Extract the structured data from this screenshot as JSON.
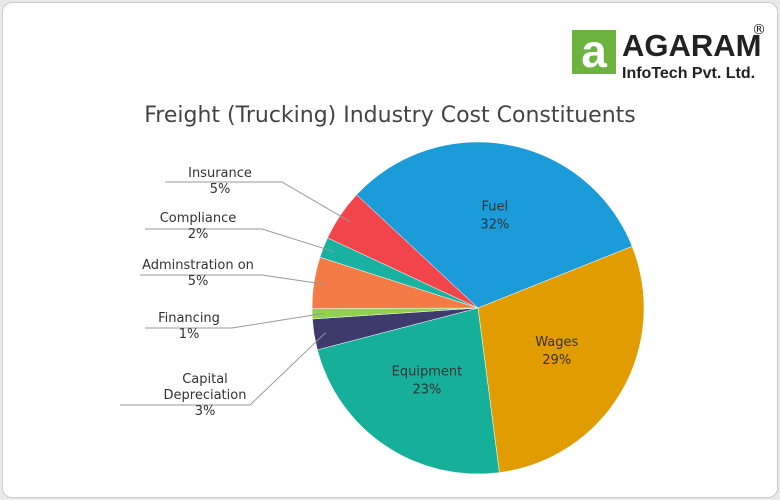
{
  "logo": {
    "icon": "a",
    "name": "AGARAM",
    "mark": "®",
    "tagline": "InfoTech Pvt. Ltd."
  },
  "chart_data": {
    "type": "pie",
    "title": "Freight (Trucking) Industry Cost Constituents",
    "categories": [
      "Fuel",
      "Wages",
      "Equipment",
      "Capital Depreciation",
      "Financing",
      "Adminstration on",
      "Compliance",
      "Insurance"
    ],
    "values": [
      32,
      29,
      23,
      3,
      1,
      5,
      2,
      5
    ],
    "value_labels": [
      "32%",
      "29%",
      "23%",
      "3%",
      "1%",
      "5%",
      "2%",
      "5%"
    ],
    "colors": [
      "#1b9bd7",
      "#e09c00",
      "#16b09a",
      "#3e3a6c",
      "#90d24e",
      "#f47b46",
      "#19b2a1",
      "#f2454b"
    ]
  }
}
